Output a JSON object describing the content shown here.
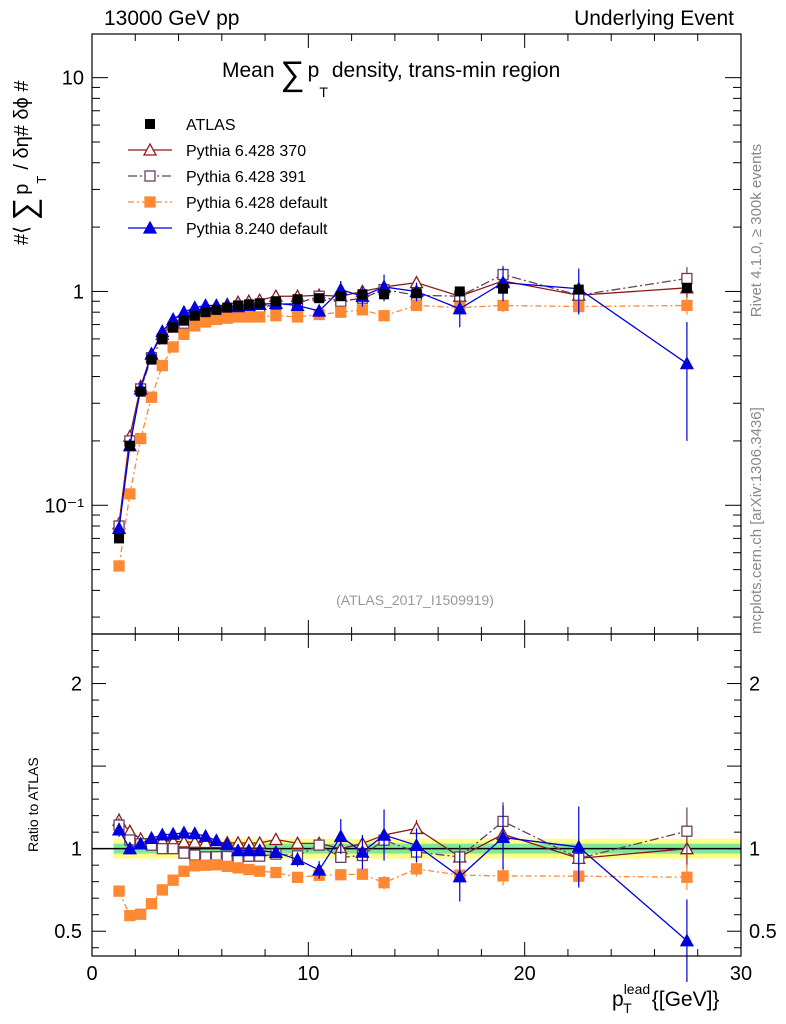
{
  "header": {
    "left": "13000 GeV pp",
    "right": "Underlying Event"
  },
  "side_info": {
    "rivet": "Rivet 4.1.0, ≥ 300k events",
    "source": "mcplots.cern.ch [arXiv:1306.3436]"
  },
  "colors": {
    "atlas": "#000000",
    "p370": "#8b1a1a",
    "p391": "#6b3e5e",
    "p6def": "#ff8833",
    "p8": "#0000dd",
    "band_inner": "#7fe89a",
    "band_outer": "#ffff88"
  },
  "chart_data": {
    "type": "scatter",
    "title": "Mean ∑ p_T density, trans-min region",
    "title_parts": {
      "pre": "Mean",
      "sigma": "∑",
      "p": "p",
      "sub": "T",
      "post": "density, trans-min region"
    },
    "analysis_tag": "(ATLAS_2017_I1509919)",
    "ylabel_parts": {
      "a": "#⟨",
      "sigma": "∑",
      "p": "p",
      "sub": "T",
      "b": "/ δη# δϕ #"
    },
    "xlabel_parts": {
      "p": "p",
      "sup": "lead",
      "sub": "T",
      "unit": "{[GeV]}"
    },
    "ratio_ylabel": "Ratio to ATLAS",
    "xlim": [
      0,
      30
    ],
    "ylim_main": [
      0.025,
      16
    ],
    "yscale_main": "log",
    "ylim_ratio": [
      0.35,
      2.3
    ],
    "x_ticks": [
      "0",
      "10",
      "20",
      "30"
    ],
    "main_ticks": [
      "10⁻¹",
      "1",
      "10"
    ],
    "ratio_ticks": [
      "0.5",
      "1",
      "2"
    ],
    "x": [
      1.25,
      1.75,
      2.25,
      2.75,
      3.25,
      3.75,
      4.25,
      4.75,
      5.25,
      5.75,
      6.25,
      6.75,
      7.25,
      7.75,
      8.5,
      9.5,
      10.5,
      11.5,
      12.5,
      13.5,
      15,
      17,
      19,
      22.5,
      27.5
    ],
    "atlas": {
      "name": "ATLAS",
      "values": [
        0.07,
        0.19,
        0.34,
        0.48,
        0.6,
        0.68,
        0.73,
        0.77,
        0.8,
        0.82,
        0.84,
        0.86,
        0.87,
        0.88,
        0.9,
        0.92,
        0.93,
        0.95,
        0.97,
        0.97,
        0.98,
        1.0,
        1.03,
        1.02,
        1.04
      ],
      "band_inner": 0.03,
      "band_outer": 0.06
    },
    "series": [
      {
        "name": "Pythia 6.428 370",
        "key": "p370",
        "marker": "open-triangle",
        "dash": "",
        "values": [
          0.082,
          0.21,
          0.36,
          0.51,
          0.63,
          0.71,
          0.76,
          0.8,
          0.83,
          0.85,
          0.87,
          0.89,
          0.9,
          0.91,
          0.95,
          0.95,
          0.96,
          0.95,
          1.0,
          1.05,
          1.1,
          0.95,
          1.12,
          0.96,
          1.04
        ],
        "errors": [
          0.003,
          0.005,
          0.006,
          0.007,
          0.008,
          0.008,
          0.009,
          0.009,
          0.01,
          0.01,
          0.01,
          0.012,
          0.012,
          0.013,
          0.015,
          0.02,
          0.025,
          0.03,
          0.035,
          0.04,
          0.05,
          0.07,
          0.1,
          0.08,
          0.12
        ]
      },
      {
        "name": "Pythia 6.428 391",
        "key": "p391",
        "marker": "open-square",
        "dash": "9,3,2,3",
        "values": [
          0.08,
          0.2,
          0.35,
          0.49,
          0.6,
          0.68,
          0.71,
          0.74,
          0.76,
          0.78,
          0.8,
          0.81,
          0.83,
          0.84,
          0.87,
          0.88,
          0.95,
          0.9,
          0.93,
          1.02,
          0.96,
          0.95,
          1.2,
          0.96,
          1.15
        ],
        "errors": [
          0.003,
          0.005,
          0.006,
          0.007,
          0.008,
          0.008,
          0.009,
          0.009,
          0.01,
          0.01,
          0.01,
          0.012,
          0.012,
          0.013,
          0.015,
          0.02,
          0.025,
          0.03,
          0.035,
          0.04,
          0.05,
          0.07,
          0.12,
          0.08,
          0.15
        ]
      },
      {
        "name": "Pythia 6.428 default",
        "key": "p6def",
        "marker": "filled-square",
        "dash": "6,3,2,3",
        "values": [
          0.052,
          0.113,
          0.205,
          0.32,
          0.45,
          0.55,
          0.63,
          0.69,
          0.72,
          0.74,
          0.75,
          0.76,
          0.76,
          0.76,
          0.77,
          0.76,
          0.78,
          0.8,
          0.82,
          0.77,
          0.86,
          0.84,
          0.86,
          0.85,
          0.86
        ],
        "errors": [
          0.002,
          0.004,
          0.005,
          0.006,
          0.007,
          0.007,
          0.008,
          0.008,
          0.009,
          0.009,
          0.009,
          0.01,
          0.01,
          0.011,
          0.013,
          0.018,
          0.022,
          0.026,
          0.032,
          0.04,
          0.045,
          0.06,
          0.06,
          0.06,
          0.08
        ]
      },
      {
        "name": "Pythia 8.240 default",
        "key": "p8",
        "marker": "filled-triangle",
        "dash": "",
        "values": [
          0.078,
          0.19,
          0.35,
          0.51,
          0.65,
          0.74,
          0.8,
          0.84,
          0.86,
          0.86,
          0.86,
          0.85,
          0.86,
          0.87,
          0.88,
          0.86,
          0.81,
          1.02,
          0.95,
          1.05,
          1.0,
          0.83,
          1.1,
          1.03,
          0.46
        ],
        "errors": [
          0.003,
          0.005,
          0.006,
          0.007,
          0.008,
          0.008,
          0.009,
          0.009,
          0.01,
          0.01,
          0.01,
          0.012,
          0.02,
          0.02,
          0.03,
          0.04,
          0.05,
          0.1,
          0.1,
          0.15,
          0.1,
          0.15,
          0.2,
          0.25,
          0.26
        ]
      }
    ]
  }
}
